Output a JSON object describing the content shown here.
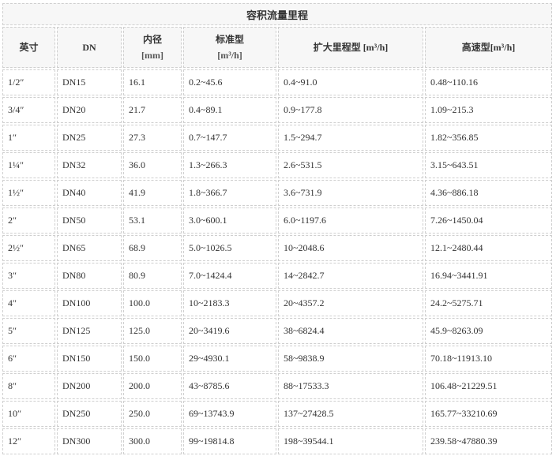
{
  "title": "容积流量里程",
  "headers": [
    {
      "label": "英寸",
      "unit": ""
    },
    {
      "label": "DN",
      "unit": ""
    },
    {
      "label": "内径",
      "unit": "[mm]"
    },
    {
      "label": "标准型",
      "unit": "[m³/h]"
    },
    {
      "label": "扩大里程型  [m³/h]",
      "unit": ""
    },
    {
      "label": "高速型[m³/h]",
      "unit": ""
    }
  ],
  "rows": [
    [
      "1/2″",
      "DN15",
      "16.1",
      "0.2~45.6",
      "0.4~91.0",
      "0.48~110.16"
    ],
    [
      "3/4″",
      "DN20",
      "21.7",
      "0.4~89.1",
      "0.9~177.8",
      "1.09~215.3"
    ],
    [
      "1″",
      "DN25",
      "27.3",
      "0.7~147.7",
      "1.5~294.7",
      "1.82~356.85"
    ],
    [
      "1¼″",
      "DN32",
      "36.0",
      "1.3~266.3",
      "2.6~531.5",
      "3.15~643.51"
    ],
    [
      "1½″",
      "DN40",
      "41.9",
      "1.8~366.7",
      "3.6~731.9",
      "4.36~886.18"
    ],
    [
      "2″",
      "DN50",
      "53.1",
      "3.0~600.1",
      "6.0~1197.6",
      "7.26~1450.04"
    ],
    [
      "2½″",
      "DN65",
      "68.9",
      "5.0~1026.5",
      "10~2048.6",
      "12.1~2480.44"
    ],
    [
      "3″",
      "DN80",
      "80.9",
      "7.0~1424.4",
      "14~2842.7",
      "16.94~3441.91"
    ],
    [
      "4″",
      "DN100",
      "100.0",
      "10~2183.3",
      "20~4357.2",
      "24.2~5275.71"
    ],
    [
      "5″",
      "DN125",
      "125.0",
      "20~3419.6",
      "38~6824.4",
      "45.9~8263.09"
    ],
    [
      "6″",
      "DN150",
      "150.0",
      "29~4930.1",
      "58~9838.9",
      "70.18~11913.10"
    ],
    [
      "8″",
      "DN200",
      "200.0",
      "43~8785.6",
      "88~17533.3",
      "106.48~21229.51"
    ],
    [
      "10″",
      "DN250",
      "250.0",
      "69~13743.9",
      "137~27428.5",
      "165.77~33210.69"
    ],
    [
      "12″",
      "DN300",
      "300.0",
      "99~19814.8",
      "198~39544.1",
      "239.58~47880.39"
    ]
  ]
}
